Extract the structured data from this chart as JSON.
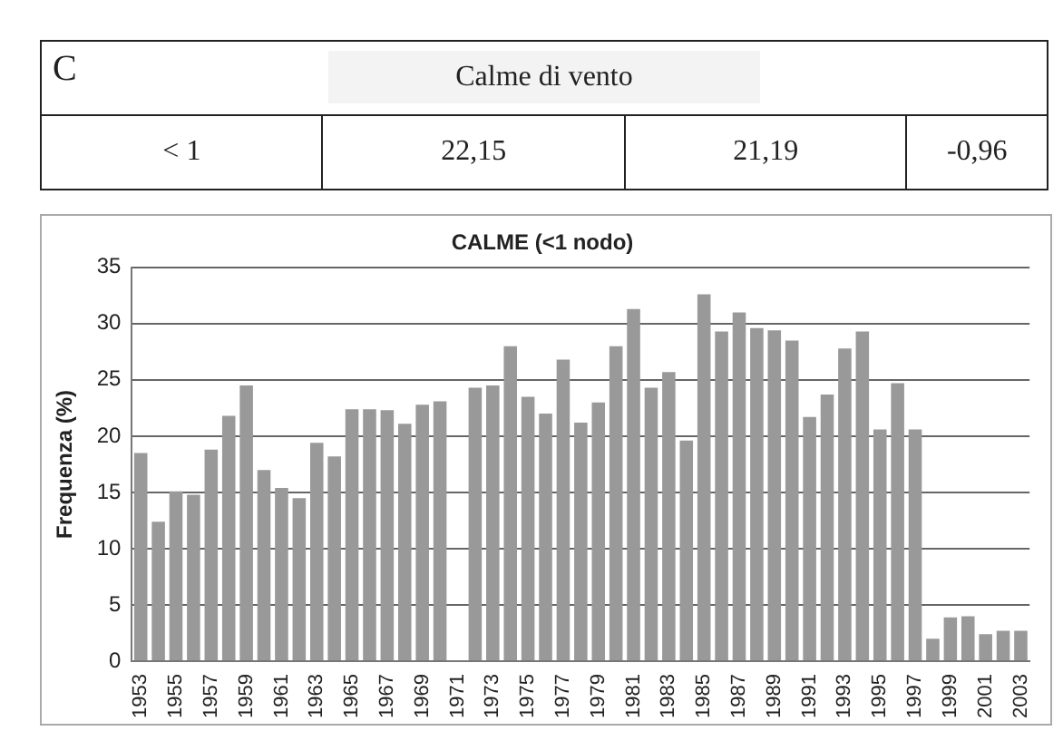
{
  "chart_data": [
    {
      "type": "other",
      "title": "Calme di vento",
      "annotations": [
        "C",
        "< 1",
        "22,15",
        "21,19",
        "-0,96"
      ]
    },
    {
      "type": "bar",
      "title": "CALME (<1 nodo)",
      "ylabel": "Frequenza (%)",
      "categories": [
        "1953",
        null,
        "1955",
        null,
        "1957",
        null,
        "1959",
        null,
        "1961",
        null,
        "1963",
        null,
        "1965",
        null,
        "1967",
        null,
        "1969",
        null,
        "1971",
        null,
        "1973",
        null,
        "1975",
        null,
        "1977",
        null,
        "1979",
        null,
        "1981",
        null,
        "1983",
        null,
        "1985",
        null,
        "1987",
        null,
        "1989",
        null,
        "1991",
        null,
        "1993",
        null,
        "1995",
        null,
        "1997",
        null,
        "1999",
        null,
        "2001",
        null,
        "2003"
      ],
      "values": [
        18.5,
        12.4,
        15.1,
        14.8,
        18.8,
        21.8,
        24.5,
        17.0,
        15.4,
        14.5,
        19.4,
        18.2,
        22.4,
        22.4,
        22.3,
        21.1,
        22.8,
        23.1,
        null,
        24.3,
        24.5,
        28.0,
        23.5,
        22.0,
        26.8,
        21.2,
        23.0,
        28.0,
        31.3,
        24.3,
        25.7,
        19.6,
        32.6,
        29.3,
        31.0,
        29.6,
        29.4,
        28.5,
        21.7,
        23.7,
        27.8,
        29.3,
        20.6,
        24.7,
        20.6,
        2.0,
        3.9,
        4.0,
        2.4,
        2.7,
        2.7
      ],
      "color": "#999999",
      "ylim": [
        0,
        35
      ],
      "yticks": [
        0,
        5,
        10,
        15,
        20,
        25,
        30,
        35
      ],
      "grid": "y",
      "legend": false
    }
  ]
}
